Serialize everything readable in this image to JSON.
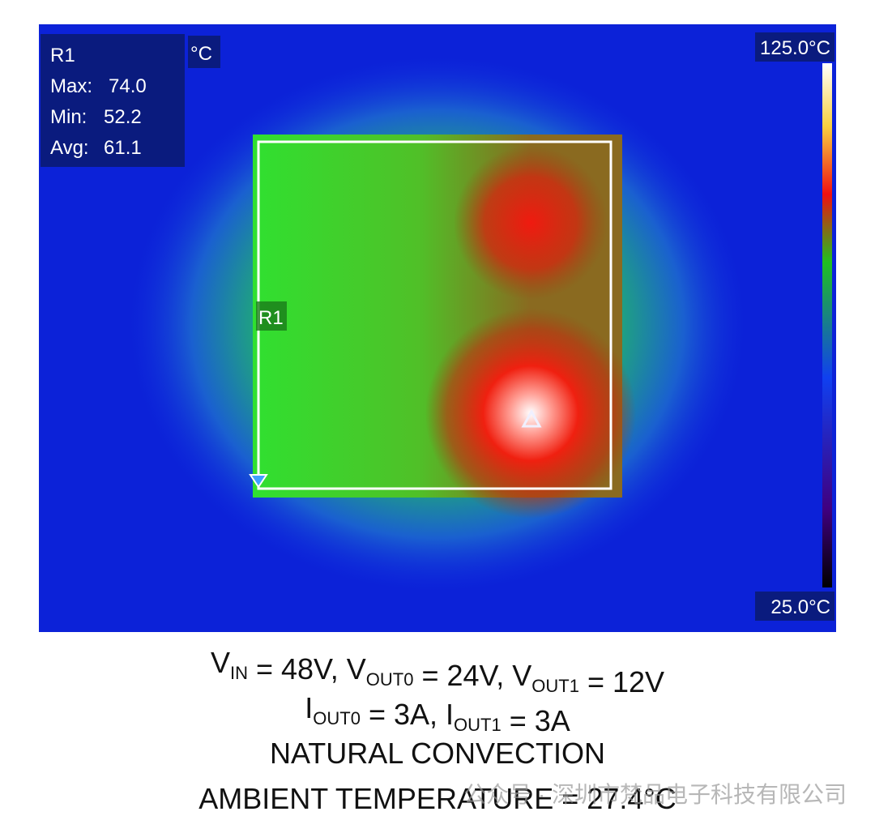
{
  "thermal": {
    "panel": {
      "region": "R1",
      "rows": [
        {
          "label": "Max:",
          "value": "74.0"
        },
        {
          "label": "Min:",
          "value": "52.2"
        },
        {
          "label": "Avg:",
          "value": "61.1"
        }
      ]
    },
    "unit": "°C",
    "scale_max": "125.0°C",
    "scale_min": "25.0°C",
    "roi_label": "R1"
  },
  "caption": {
    "lines": [
      [
        {
          "text": "V"
        },
        {
          "sub": "IN"
        },
        {
          "text": " = 48V, V"
        },
        {
          "sub": "OUT0"
        },
        {
          "text": " = 24V, V"
        },
        {
          "sub": "OUT1"
        },
        {
          "text": " = 12V"
        }
      ],
      [
        {
          "text": "I"
        },
        {
          "sub": "OUT0"
        },
        {
          "text": " = 3A, I"
        },
        {
          "sub": "OUT1"
        },
        {
          "text": " = 3A"
        }
      ],
      [
        {
          "text": "NATURAL CONVECTION"
        }
      ],
      [
        {
          "text": "AMBIENT TEMPERATURE = 27.4°C"
        }
      ]
    ]
  },
  "watermark": "公众号 · 深圳市梵品电子科技有限公司"
}
